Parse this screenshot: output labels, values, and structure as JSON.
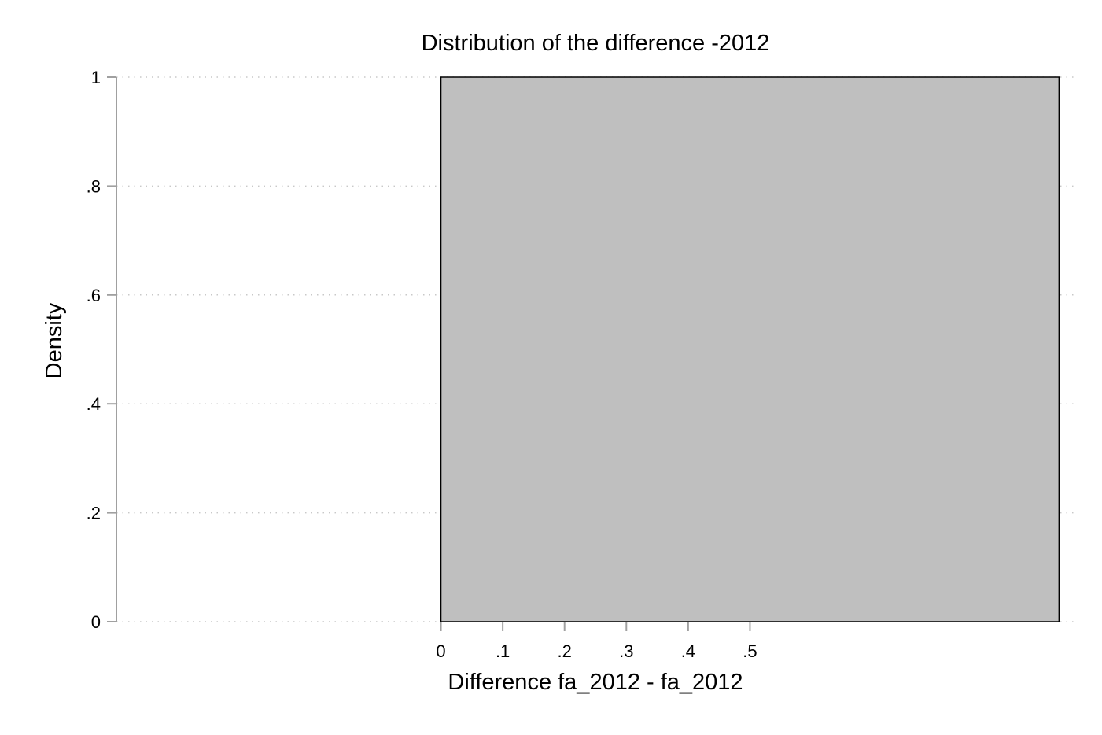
{
  "chart_data": {
    "type": "bar",
    "title": "Distribution of the difference -2012",
    "xlabel": "Difference fa_2012 - fa_2012",
    "ylabel": "Density",
    "xlim": [
      -0.525,
      1.025
    ],
    "ylim": [
      0,
      1
    ],
    "xticks": [
      0,
      0.1,
      0.2,
      0.3,
      0.4,
      0.5
    ],
    "xtick_labels": [
      "0",
      ".1",
      ".2",
      ".3",
      ".4",
      ".5"
    ],
    "yticks": [
      0,
      0.2,
      0.4,
      0.6,
      0.8,
      1
    ],
    "ytick_labels": [
      "0",
      ".2",
      ".4",
      ".6",
      ".8",
      "1"
    ],
    "bins": [
      {
        "start": 0,
        "end": 1,
        "density": 1
      }
    ],
    "bar_color": "#bfbfbf",
    "grid": true,
    "legend": "none"
  }
}
